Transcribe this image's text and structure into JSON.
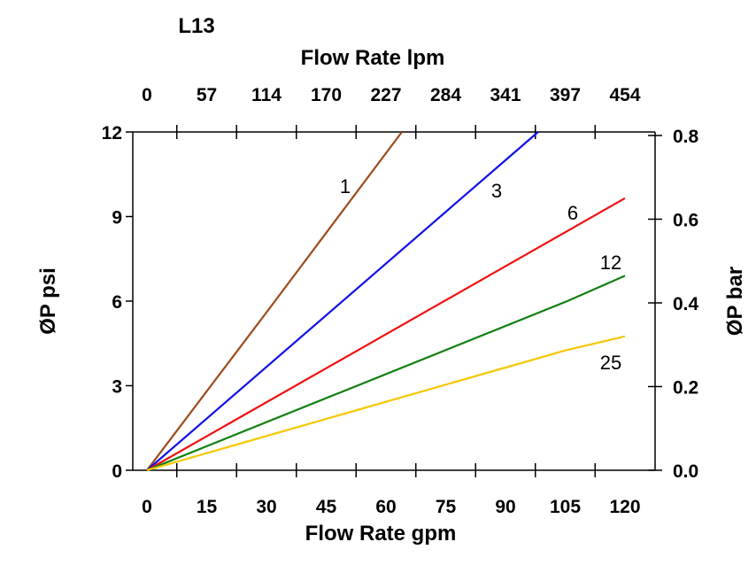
{
  "chart_data": {
    "type": "line",
    "title": "L13",
    "xlabel": "Flow Rate gpm",
    "x2label": "Flow Rate lpm",
    "ylabel": "ØP psi",
    "y2label": "ØP bar",
    "xlim": [
      -3.5,
      127
    ],
    "ylim": [
      0,
      12
    ],
    "x_ticks": [
      "0",
      "15",
      "30",
      "45",
      "60",
      "75",
      "90",
      "105",
      "120"
    ],
    "x2_ticks": [
      "0",
      "57",
      "114",
      "170",
      "227",
      "284",
      "341",
      "397",
      "454"
    ],
    "y_ticks": [
      "0",
      "3",
      "6",
      "9",
      "12"
    ],
    "y2_ticks": [
      "0.0",
      "0.2",
      "0.4",
      "0.6",
      "0.8"
    ],
    "grid": false,
    "series": [
      {
        "name": "1",
        "color": "#9c4a1a",
        "x": [
          0,
          30,
          64
        ],
        "y": [
          0,
          5.6,
          12
        ]
      },
      {
        "name": "3",
        "color": "#1010e8",
        "x": [
          0,
          98.2
        ],
        "y": [
          0,
          12
        ]
      },
      {
        "name": "6",
        "color": "#f01010",
        "x": [
          0,
          74,
          120
        ],
        "y": [
          0,
          5.95,
          9.65
        ]
      },
      {
        "name": "12",
        "color": "#108010",
        "x": [
          0,
          105,
          120
        ],
        "y": [
          0,
          5.97,
          6.9
        ]
      },
      {
        "name": "25",
        "color": "#f5c800",
        "x": [
          0,
          105,
          120
        ],
        "y": [
          0,
          4.25,
          4.75
        ]
      }
    ]
  }
}
